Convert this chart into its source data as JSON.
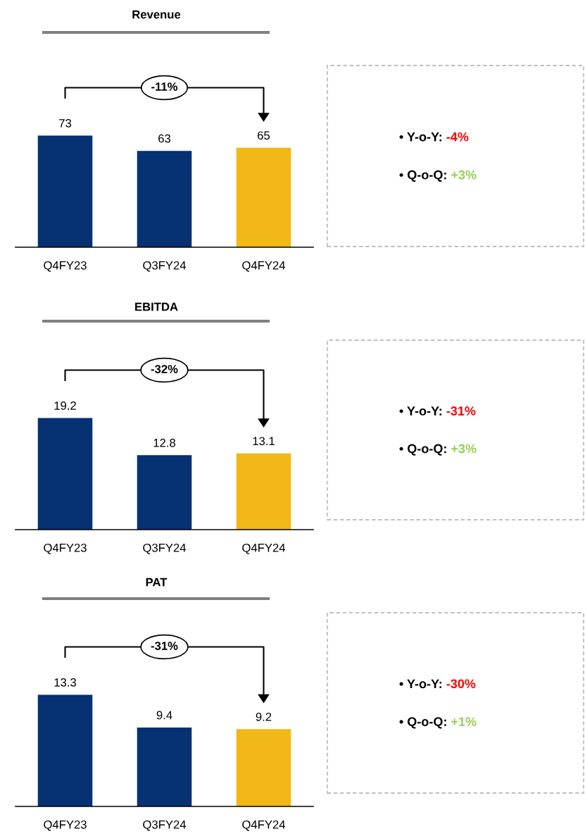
{
  "chart_data": [
    {
      "type": "bar",
      "title": "Revenue",
      "categories": [
        "Q4FY23",
        "Q3FY24",
        "Q4FY24"
      ],
      "values": [
        73,
        63,
        65
      ],
      "colors": [
        "#063173",
        "#063173",
        "#f2b817"
      ],
      "data_labels": true,
      "annotations": [
        "-11%"
      ]
    },
    {
      "type": "other",
      "annotations": [
        "• Y-o-Y: -4%",
        "• Q-o-Q: +3%"
      ],
      "colors": [
        "#ff0000",
        "#92d050"
      ]
    },
    {
      "type": "bar",
      "title": "EBITDA",
      "categories": [
        "Q4FY23",
        "Q3FY24",
        "Q4FY24"
      ],
      "values": [
        19.2,
        12.8,
        13.1
      ],
      "colors": [
        "#063173",
        "#063173",
        "#f2b817"
      ],
      "data_labels": true,
      "annotations": [
        "-32%"
      ]
    },
    {
      "type": "other",
      "annotations": [
        "• Y-o-Y: -31%",
        "• Q-o-Q: +3%"
      ],
      "colors": [
        "#ff0000",
        "#92d050"
      ]
    },
    {
      "type": "bar",
      "title": "PAT",
      "categories": [
        "Q4FY23",
        "Q3FY24",
        "Q4FY24"
      ],
      "values": [
        13.3,
        9.4,
        9.2
      ],
      "colors": [
        "#063173",
        "#063173",
        "#f2b817"
      ],
      "data_labels": true,
      "annotations": [
        "-31%"
      ]
    },
    {
      "type": "other",
      "annotations": [
        "• Y-o-Y: -30%",
        "• Q-o-Q: +1%"
      ],
      "colors": [
        "#ff0000",
        "#92d050"
      ]
    }
  ]
}
